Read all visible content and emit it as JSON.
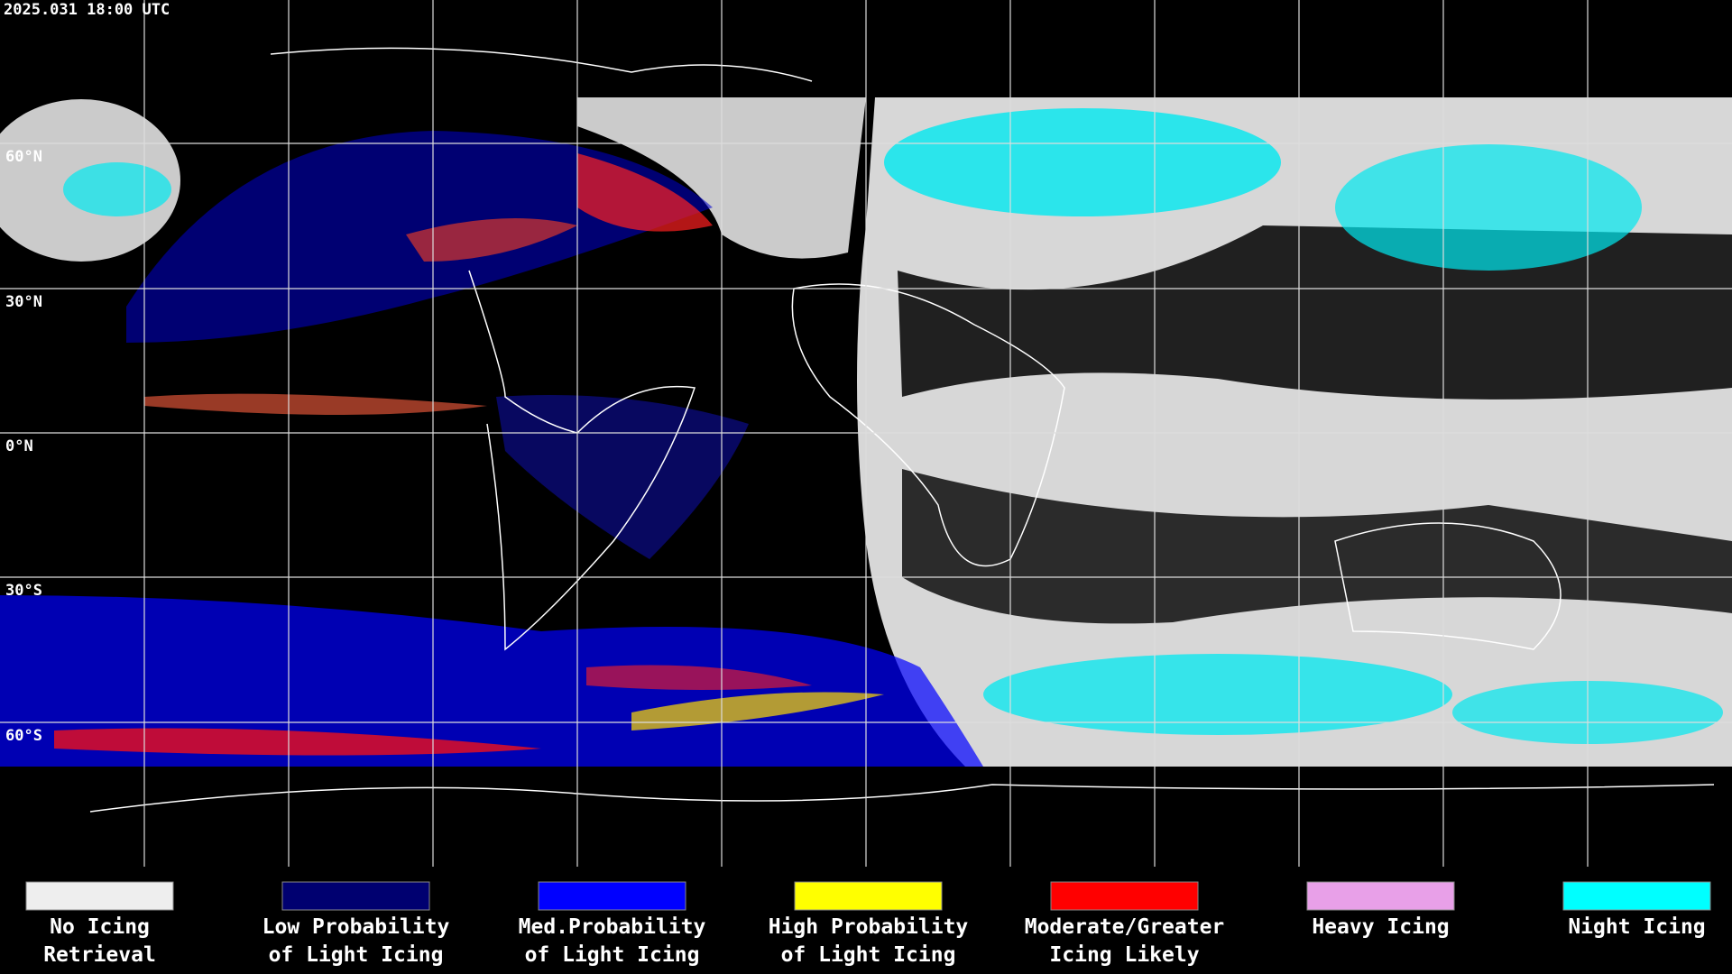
{
  "header": {
    "timestamp": "2025.031 18:00 UTC"
  },
  "latitude_labels": [
    "60°N",
    "30°N",
    "0°N",
    "30°S",
    "60°S"
  ],
  "legend": [
    {
      "color": "#eeeeee",
      "label": [
        "No Icing",
        "Retrieval"
      ]
    },
    {
      "color": "#000070",
      "label": [
        "Low Probability",
        "of Light Icing"
      ]
    },
    {
      "color": "#0000ff",
      "label": [
        "Med.Probability",
        "of Light Icing"
      ]
    },
    {
      "color": "#ffff00",
      "label": [
        "High Probability",
        "of Light Icing"
      ]
    },
    {
      "color": "#ff0000",
      "label": [
        "Moderate/Greater",
        "Icing Likely"
      ]
    },
    {
      "color": "#e8a0e8",
      "label": [
        "Heavy Icing"
      ]
    },
    {
      "color": "#00ffff",
      "label": [
        "Night Icing"
      ]
    }
  ]
}
